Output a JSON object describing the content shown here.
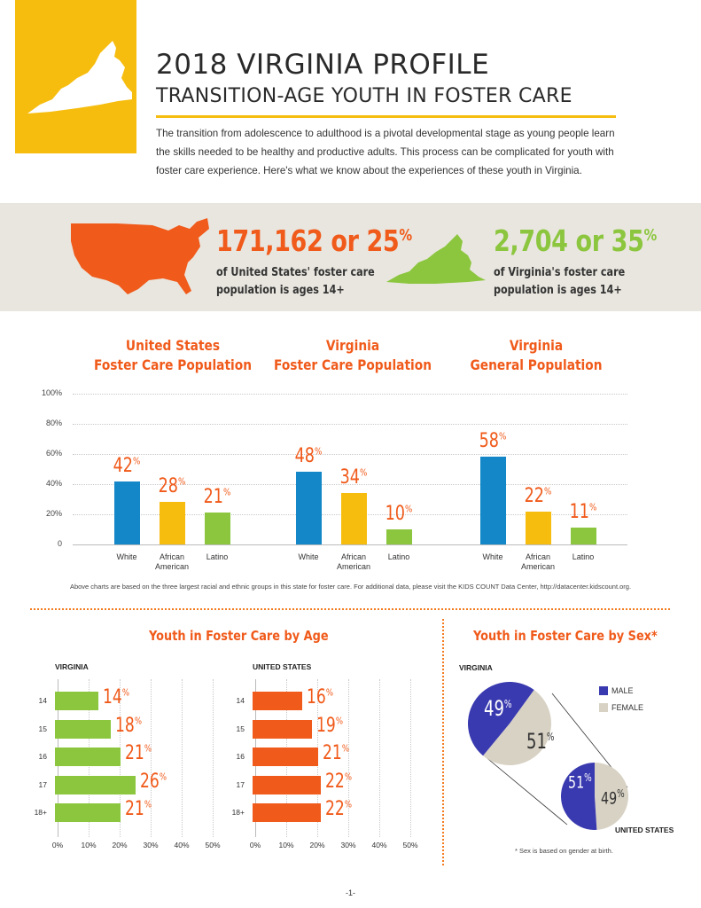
{
  "header": {
    "title": "2018 VIRGINIA PROFILE",
    "subtitle": "TRANSITION-AGE YOUTH IN FOSTER CARE",
    "intro": "The transition from adolescence to adulthood is a pivotal developmental stage as young people learn the skills needed to be healthy and productive adults. This process can be complicated for youth with foster care experience. Here's what we know about the experiences of these youth in Virginia."
  },
  "banner": {
    "us_stat": "171,162 or 25",
    "us_pct_sign": "%",
    "us_desc_line1": "of United States' foster care",
    "us_desc_line2": "population is ages 14+",
    "va_stat": "2,704 or 35",
    "va_pct_sign": "%",
    "va_desc_line1": "of Virginia's foster care",
    "va_desc_line2": "population is ages 14+"
  },
  "colors": {
    "yellow": "#f6bd0f",
    "orange": "#f05a1a",
    "us_map": "#f05a1a",
    "va_map": "#8cc63f",
    "white_bar": "#1387c8",
    "african_american_bar": "#f6bd0f",
    "latino_bar": "#8cc63f",
    "male": "#3a3ab0",
    "female": "#d8d2c4"
  },
  "chart_data": [
    {
      "type": "bar",
      "title": "United States Foster Care Population",
      "categories": [
        "White",
        "African American",
        "Latino"
      ],
      "values": [
        42,
        28,
        21
      ],
      "ylim": [
        0,
        100
      ],
      "yticks": [
        "100%",
        "80%",
        "60%",
        "40%",
        "20%",
        "0"
      ]
    },
    {
      "type": "bar",
      "title": "Virginia Foster Care Population",
      "categories": [
        "White",
        "African American",
        "Latino"
      ],
      "values": [
        48,
        34,
        10
      ],
      "ylim": [
        0,
        100
      ]
    },
    {
      "type": "bar",
      "title": "Virginia General Population",
      "categories": [
        "White",
        "African American",
        "Latino"
      ],
      "values": [
        58,
        22,
        11
      ],
      "ylim": [
        0,
        100
      ]
    },
    {
      "type": "bar",
      "orientation": "horizontal",
      "title": "Youth in Foster Care by Age",
      "region": "VIRGINIA",
      "categories": [
        "14",
        "15",
        "16",
        "17",
        "18+"
      ],
      "values": [
        14,
        18,
        21,
        26,
        21
      ],
      "xlim": [
        0,
        50
      ],
      "xticks": [
        "0%",
        "10%",
        "20%",
        "30%",
        "40%",
        "50%"
      ]
    },
    {
      "type": "bar",
      "orientation": "horizontal",
      "title": "Youth in Foster Care by Age",
      "region": "UNITED STATES",
      "categories": [
        "14",
        "15",
        "16",
        "17",
        "18+"
      ],
      "values": [
        16,
        19,
        21,
        22,
        22
      ],
      "xlim": [
        0,
        50
      ],
      "xticks": [
        "0%",
        "10%",
        "20%",
        "30%",
        "40%",
        "50%"
      ]
    },
    {
      "type": "pie",
      "title": "Youth in Foster Care by Sex*",
      "region": "VIRGINIA",
      "categories": [
        "MALE",
        "FEMALE"
      ],
      "values": [
        49,
        51
      ]
    },
    {
      "type": "pie",
      "region": "UNITED STATES",
      "categories": [
        "MALE",
        "FEMALE"
      ],
      "values": [
        51,
        49
      ]
    }
  ],
  "race_titles": [
    {
      "line1": "United States",
      "line2": "Foster Care Population"
    },
    {
      "line1": "Virginia",
      "line2": "Foster Care Population"
    },
    {
      "line1": "Virginia",
      "line2": "General Population"
    }
  ],
  "race_cats": [
    {
      "l1": "White",
      "l2": ""
    },
    {
      "l1": "African",
      "l2": "American"
    },
    {
      "l1": "Latino",
      "l2": ""
    }
  ],
  "yticks": [
    "100%",
    "80%",
    "60%",
    "40%",
    "20%",
    "0"
  ],
  "footnote": "Above charts are based on the three largest racial and ethnic groups in this state for foster care. For additional data, please visit the KIDS COUNT Data Center, http://datacenter.kidscount.org.",
  "age_section": {
    "title": "Youth in Foster Care by Age",
    "va_label": "VIRGINIA",
    "us_label": "UNITED STATES",
    "ages": [
      "14",
      "15",
      "16",
      "17",
      "18+"
    ],
    "va_values": [
      14,
      18,
      21,
      26,
      21
    ],
    "us_values": [
      16,
      19,
      21,
      22,
      22
    ],
    "xticks": [
      "0%",
      "10%",
      "20%",
      "30%",
      "40%",
      "50%"
    ]
  },
  "sex_section": {
    "title": "Youth in Foster Care by Sex*",
    "va_label": "VIRGINIA",
    "us_label": "UNITED STATES",
    "legend_male": "MALE",
    "legend_female": "FEMALE",
    "va_male": "49",
    "va_female": "51",
    "us_male": "51",
    "us_female": "49",
    "pct_sign": "%",
    "note": "* Sex is based on gender at birth."
  },
  "page_number": "-1-"
}
